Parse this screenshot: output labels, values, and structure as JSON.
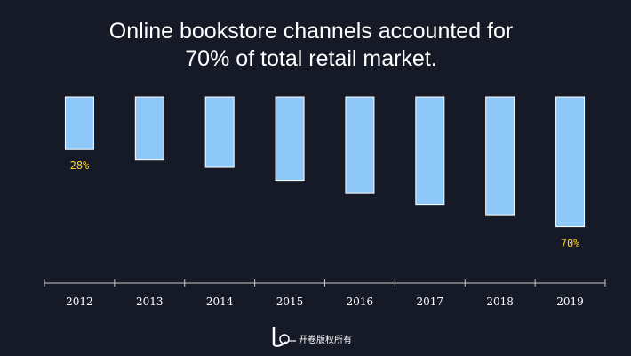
{
  "chart_data": {
    "type": "bar",
    "title_lines": [
      "Online bookstore channels accounted for",
      "70% of total retail market."
    ],
    "categories": [
      "2012",
      "2013",
      "2014",
      "2015",
      "2016",
      "2017",
      "2018",
      "2019"
    ],
    "values": [
      28,
      34,
      38,
      45,
      52,
      58,
      64,
      70
    ],
    "data_labels": [
      "28%",
      "",
      "",
      "",
      "",
      "",
      "",
      "70%"
    ],
    "ylim": [
      0,
      70
    ],
    "grid": false,
    "bar_color": "#8ec8f8",
    "bar_border_color": "#ffffff",
    "label_color": "#ffd51e",
    "axis_color": "#c8c8c8"
  },
  "footer": {
    "watermark_text": "开卷版权所有"
  },
  "colors": {
    "background": "#161a26",
    "title": "#ffffff",
    "tick_label": "#ffffff"
  }
}
